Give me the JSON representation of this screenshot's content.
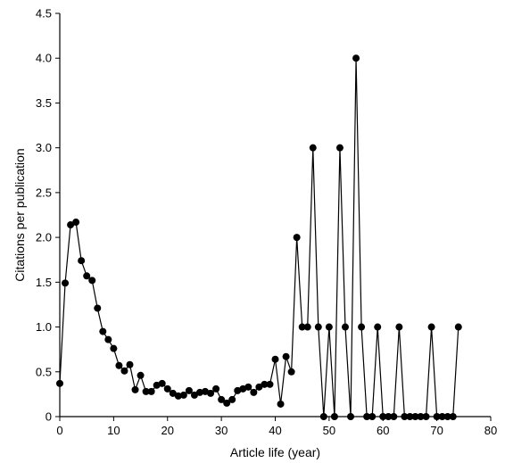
{
  "chart_data": {
    "type": "line",
    "title": "",
    "xlabel": "Article life (year)",
    "ylabel": "Citations per publication",
    "xlim": [
      0,
      80
    ],
    "ylim": [
      0,
      4.5
    ],
    "x_ticks": [
      "0",
      "10",
      "20",
      "30",
      "40",
      "50",
      "60",
      "70",
      "80"
    ],
    "y_ticks": [
      "0",
      "0.5",
      "1.0",
      "1.5",
      "2.0",
      "2.5",
      "3.0",
      "3.5",
      "4.0",
      "4.5"
    ],
    "grid": false,
    "legend": "none",
    "series": [
      {
        "marker": "filled-circle",
        "color": "#000000",
        "x": [
          0,
          1,
          2,
          3,
          4,
          5,
          6,
          7,
          8,
          9,
          10,
          11,
          12,
          13,
          14,
          15,
          16,
          17,
          18,
          19,
          20,
          21,
          22,
          23,
          24,
          25,
          26,
          27,
          28,
          29,
          30,
          31,
          32,
          33,
          34,
          35,
          36,
          37,
          38,
          39,
          40,
          41,
          42,
          43,
          44,
          45,
          46,
          47,
          48,
          49,
          50,
          51,
          52,
          53,
          54,
          55,
          56,
          57,
          58,
          59,
          60,
          61,
          62,
          63,
          64,
          65,
          66,
          67,
          68,
          69,
          70,
          71,
          72,
          73,
          74
        ],
        "y": [
          0.37,
          1.49,
          2.14,
          2.17,
          1.74,
          1.57,
          1.52,
          1.21,
          0.95,
          0.86,
          0.76,
          0.57,
          0.51,
          0.58,
          0.3,
          0.46,
          0.28,
          0.28,
          0.35,
          0.37,
          0.31,
          0.26,
          0.23,
          0.24,
          0.29,
          0.24,
          0.27,
          0.28,
          0.26,
          0.31,
          0.19,
          0.15,
          0.19,
          0.29,
          0.31,
          0.33,
          0.27,
          0.33,
          0.36,
          0.36,
          0.64,
          0.14,
          0.67,
          0.5,
          2.0,
          1.0,
          1.0,
          3.0,
          1.0,
          0.0,
          1.0,
          0.0,
          3.0,
          1.0,
          0.0,
          4.0,
          1.0,
          0.0,
          0.0,
          1.0,
          0.0,
          0.0,
          0.0,
          1.0,
          0.0,
          0.0,
          0.0,
          0.0,
          0.0,
          1.0,
          0.0,
          0.0,
          0.0,
          0.0,
          1.0
        ]
      }
    ]
  }
}
